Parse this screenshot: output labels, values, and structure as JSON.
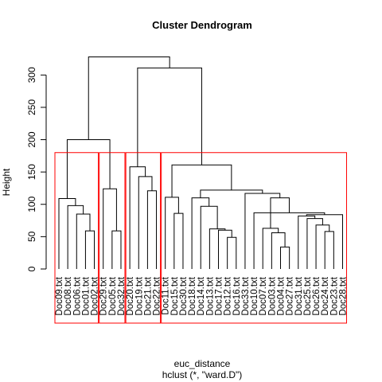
{
  "chart_data": {
    "type": "dendrogram",
    "title": "Cluster Dendrogram",
    "ylabel": "Height",
    "xlabel": "euc_distance",
    "sublabel": "hclust (*, \"ward.D\")",
    "ylim": [
      0,
      340
    ],
    "yticks": [
      0,
      50,
      100,
      150,
      200,
      250,
      300
    ],
    "leaf_height": 0,
    "leaves": [
      "Doc09.txt",
      "Doc08.txt",
      "Doc06.txt",
      "Doc01.txt",
      "Doc02.txt",
      "Doc29.txt",
      "Doc05.txt",
      "Doc32.txt",
      "Doc20.txt",
      "Doc19.txt",
      "Doc21.txt",
      "Doc22.txt",
      "Doc11.txt",
      "Doc15.txt",
      "Doc30.txt",
      "Doc18.txt",
      "Doc14.txt",
      "Doc13.txt",
      "Doc17.txt",
      "Doc12.txt",
      "Doc16.txt",
      "Doc33.txt",
      "Doc10.txt",
      "Doc07.txt",
      "Doc03.txt",
      "Doc04.txt",
      "Doc27.txt",
      "Doc31.txt",
      "Doc25.txt",
      "Doc26.txt",
      "Doc24.txt",
      "Doc23.txt",
      "Doc28.txt"
    ],
    "merges": [
      {
        "id": "m1",
        "left": "Doc01.txt",
        "right": "Doc02.txt",
        "height": 59
      },
      {
        "id": "m2",
        "left": "Doc06.txt",
        "right": "m1",
        "height": 85
      },
      {
        "id": "m3",
        "left": "Doc08.txt",
        "right": "m2",
        "height": 98
      },
      {
        "id": "m4",
        "left": "Doc09.txt",
        "right": "m3",
        "height": 109
      },
      {
        "id": "m5",
        "left": "Doc05.txt",
        "right": "Doc32.txt",
        "height": 59
      },
      {
        "id": "m6",
        "left": "Doc29.txt",
        "right": "m5",
        "height": 124
      },
      {
        "id": "m7",
        "left": "m4",
        "right": "m6",
        "height": 200
      },
      {
        "id": "m8",
        "left": "Doc21.txt",
        "right": "Doc22.txt",
        "height": 121
      },
      {
        "id": "m9",
        "left": "Doc19.txt",
        "right": "m8",
        "height": 143
      },
      {
        "id": "m10",
        "left": "Doc20.txt",
        "right": "m9",
        "height": 158
      },
      {
        "id": "m11",
        "left": "Doc15.txt",
        "right": "Doc30.txt",
        "height": 86
      },
      {
        "id": "m12",
        "left": "Doc11.txt",
        "right": "m11",
        "height": 111
      },
      {
        "id": "m13",
        "left": "Doc12.txt",
        "right": "Doc16.txt",
        "height": 49
      },
      {
        "id": "m14",
        "left": "Doc17.txt",
        "right": "m13",
        "height": 60
      },
      {
        "id": "m15",
        "left": "Doc13.txt",
        "right": "m14",
        "height": 62
      },
      {
        "id": "m16",
        "left": "Doc14.txt",
        "right": "m15",
        "height": 97
      },
      {
        "id": "m17",
        "left": "Doc18.txt",
        "right": "m16",
        "height": 110
      },
      {
        "id": "m18",
        "left": "Doc04.txt",
        "right": "Doc27.txt",
        "height": 34
      },
      {
        "id": "m19",
        "left": "Doc03.txt",
        "right": "m18",
        "height": 56
      },
      {
        "id": "m20",
        "left": "Doc07.txt",
        "right": "m19",
        "height": 63
      },
      {
        "id": "m21",
        "left": "Doc24.txt",
        "right": "Doc23.txt",
        "height": 58
      },
      {
        "id": "m22",
        "left": "Doc26.txt",
        "right": "m21",
        "height": 68
      },
      {
        "id": "m23",
        "left": "Doc25.txt",
        "right": "m22",
        "height": 78
      },
      {
        "id": "m24",
        "left": "Doc31.txt",
        "right": "m23",
        "height": 82
      },
      {
        "id": "m25",
        "left": "Doc28.txt",
        "right": "m24",
        "height": 84
      },
      {
        "id": "m26",
        "left": "Doc10.txt",
        "right": "m25",
        "height": 87
      },
      {
        "id": "m27",
        "left": "m20",
        "right": "m26",
        "height": 110
      },
      {
        "id": "m28",
        "left": "Doc33.txt",
        "right": "m27",
        "height": 117
      },
      {
        "id": "m29",
        "left": "m17",
        "right": "m28",
        "height": 122
      },
      {
        "id": "m30",
        "left": "m12",
        "right": "m29",
        "height": 161
      },
      {
        "id": "m31",
        "left": "m10",
        "right": "m30",
        "height": 311
      },
      {
        "id": "m32",
        "left": "m7",
        "right": "m31",
        "height": 328
      }
    ],
    "cluster_boxes": {
      "color": "#ff0000",
      "top_height": 180,
      "groups": [
        {
          "first": "Doc09.txt",
          "last": "Doc02.txt"
        },
        {
          "first": "Doc29.txt",
          "last": "Doc32.txt"
        },
        {
          "first": "Doc20.txt",
          "last": "Doc22.txt"
        },
        {
          "first": "Doc11.txt",
          "last": "Doc28.txt"
        }
      ]
    },
    "grid": false
  }
}
